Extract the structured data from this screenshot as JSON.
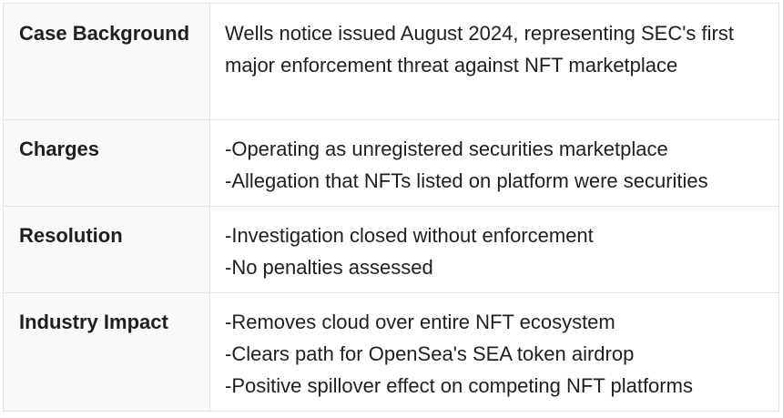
{
  "rows": [
    {
      "label": "Case Background",
      "lines": [
        "Wells notice issued August 2024, representing SEC's first major enforcement threat against NFT marketplace"
      ]
    },
    {
      "label": "Charges",
      "lines": [
        "-Operating as unregistered securities marketplace",
        "-Allegation that NFTs listed on platform were securities"
      ]
    },
    {
      "label": "Resolution",
      "lines": [
        "-Investigation closed without enforcement",
        "-No penalties assessed"
      ]
    },
    {
      "label": "Industry Impact",
      "lines": [
        "-Removes cloud over entire NFT ecosystem",
        "-Clears path for OpenSea's SEA token airdrop",
        "-Positive spillover effect on competing NFT platforms"
      ]
    }
  ]
}
